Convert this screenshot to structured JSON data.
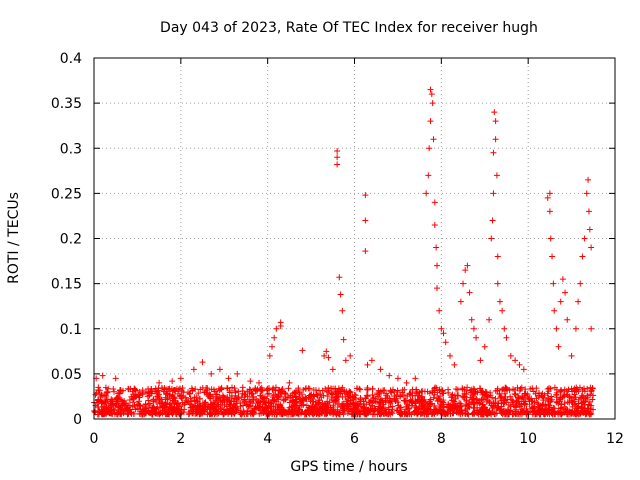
{
  "chart_data": {
    "type": "scatter",
    "title": "Day 043 of 2023, Rate Of TEC Index for receiver hugh",
    "xlabel": "GPS time / hours",
    "ylabel": "ROTI / TECUs",
    "xlim": [
      0,
      12
    ],
    "ylim": [
      0,
      0.4
    ],
    "x_ticks": [
      0,
      2,
      4,
      6,
      8,
      10,
      12
    ],
    "x_tick_labels": [
      "0",
      "2",
      "4",
      "6",
      "8",
      "10",
      "12"
    ],
    "y_ticks": [
      0,
      0.05,
      0.1,
      0.15,
      0.2,
      0.25,
      0.3,
      0.35,
      0.4
    ],
    "y_tick_labels": [
      "0",
      "0.05",
      "0.1",
      "0.15",
      "0.2",
      "0.25",
      "0.3",
      "0.35",
      "0.4"
    ],
    "grid": true,
    "marker": "+",
    "color": "#ff0000",
    "series": [
      {
        "name": "ROTI",
        "points": [
          [
            0.05,
            0.045
          ],
          [
            0.1,
            0.035
          ],
          [
            0.2,
            0.048
          ],
          [
            0.3,
            0.03
          ],
          [
            0.5,
            0.045
          ],
          [
            0.8,
            0.033
          ],
          [
            1.2,
            0.03
          ],
          [
            1.5,
            0.04
          ],
          [
            1.8,
            0.042
          ],
          [
            2.0,
            0.045
          ],
          [
            2.3,
            0.055
          ],
          [
            2.5,
            0.063
          ],
          [
            2.7,
            0.05
          ],
          [
            2.9,
            0.055
          ],
          [
            3.1,
            0.045
          ],
          [
            3.3,
            0.05
          ],
          [
            3.6,
            0.042
          ],
          [
            3.8,
            0.04
          ],
          [
            4.05,
            0.07
          ],
          [
            4.1,
            0.08
          ],
          [
            4.15,
            0.09
          ],
          [
            4.2,
            0.1
          ],
          [
            4.3,
            0.107
          ],
          [
            4.3,
            0.103
          ],
          [
            4.5,
            0.04
          ],
          [
            4.8,
            0.076
          ],
          [
            5.3,
            0.07
          ],
          [
            5.35,
            0.075
          ],
          [
            5.4,
            0.068
          ],
          [
            5.5,
            0.055
          ],
          [
            5.6,
            0.297
          ],
          [
            5.6,
            0.29
          ],
          [
            5.6,
            0.282
          ],
          [
            5.65,
            0.157
          ],
          [
            5.68,
            0.138
          ],
          [
            5.72,
            0.12
          ],
          [
            5.75,
            0.088
          ],
          [
            5.8,
            0.065
          ],
          [
            5.9,
            0.07
          ],
          [
            6.25,
            0.248
          ],
          [
            6.25,
            0.22
          ],
          [
            6.25,
            0.186
          ],
          [
            6.3,
            0.06
          ],
          [
            6.4,
            0.065
          ],
          [
            6.6,
            0.055
          ],
          [
            6.8,
            0.048
          ],
          [
            7.0,
            0.045
          ],
          [
            7.2,
            0.04
          ],
          [
            7.4,
            0.045
          ],
          [
            7.65,
            0.25
          ],
          [
            7.7,
            0.27
          ],
          [
            7.72,
            0.3
          ],
          [
            7.75,
            0.33
          ],
          [
            7.75,
            0.365
          ],
          [
            7.78,
            0.36
          ],
          [
            7.8,
            0.35
          ],
          [
            7.82,
            0.31
          ],
          [
            7.85,
            0.24
          ],
          [
            7.85,
            0.215
          ],
          [
            7.88,
            0.19
          ],
          [
            7.9,
            0.17
          ],
          [
            7.9,
            0.145
          ],
          [
            7.95,
            0.12
          ],
          [
            8.0,
            0.1
          ],
          [
            8.05,
            0.095
          ],
          [
            8.1,
            0.085
          ],
          [
            8.2,
            0.07
          ],
          [
            8.3,
            0.06
          ],
          [
            8.45,
            0.13
          ],
          [
            8.5,
            0.15
          ],
          [
            8.55,
            0.165
          ],
          [
            8.6,
            0.17
          ],
          [
            8.65,
            0.14
          ],
          [
            8.7,
            0.11
          ],
          [
            8.75,
            0.1
          ],
          [
            8.8,
            0.09
          ],
          [
            8.9,
            0.065
          ],
          [
            9.0,
            0.08
          ],
          [
            9.1,
            0.11
          ],
          [
            9.15,
            0.2
          ],
          [
            9.18,
            0.22
          ],
          [
            9.2,
            0.25
          ],
          [
            9.2,
            0.295
          ],
          [
            9.22,
            0.34
          ],
          [
            9.25,
            0.33
          ],
          [
            9.25,
            0.31
          ],
          [
            9.28,
            0.27
          ],
          [
            9.3,
            0.18
          ],
          [
            9.3,
            0.15
          ],
          [
            9.35,
            0.13
          ],
          [
            9.4,
            0.12
          ],
          [
            9.45,
            0.1
          ],
          [
            9.5,
            0.09
          ],
          [
            9.6,
            0.07
          ],
          [
            9.7,
            0.065
          ],
          [
            9.8,
            0.06
          ],
          [
            9.9,
            0.055
          ],
          [
            10.45,
            0.245
          ],
          [
            10.5,
            0.25
          ],
          [
            10.5,
            0.23
          ],
          [
            10.52,
            0.2
          ],
          [
            10.55,
            0.18
          ],
          [
            10.58,
            0.15
          ],
          [
            10.6,
            0.12
          ],
          [
            10.65,
            0.1
          ],
          [
            10.7,
            0.08
          ],
          [
            10.75,
            0.13
          ],
          [
            10.8,
            0.155
          ],
          [
            10.85,
            0.14
          ],
          [
            10.9,
            0.11
          ],
          [
            11.0,
            0.07
          ],
          [
            11.1,
            0.1
          ],
          [
            11.15,
            0.13
          ],
          [
            11.2,
            0.15
          ],
          [
            11.25,
            0.18
          ],
          [
            11.3,
            0.2
          ],
          [
            11.35,
            0.25
          ],
          [
            11.38,
            0.265
          ],
          [
            11.4,
            0.23
          ],
          [
            11.42,
            0.21
          ],
          [
            11.45,
            0.19
          ],
          [
            11.45,
            0.1
          ]
        ]
      }
    ]
  }
}
